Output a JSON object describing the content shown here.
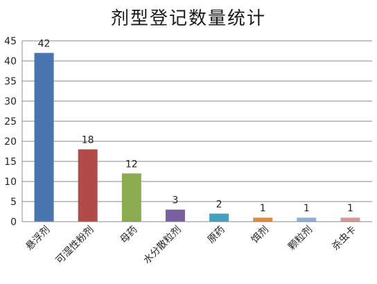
{
  "chart_data": {
    "type": "bar",
    "title": "剂型登记数量统计",
    "xlabel": "",
    "ylabel": "",
    "categories": [
      "悬浮剂",
      "可湿性粉剂",
      "母药",
      "水分散粒剂",
      "原药",
      "饵剂",
      "颗粒剂",
      "杀虫卡"
    ],
    "values": [
      42,
      18,
      12,
      3,
      2,
      1,
      1,
      1
    ],
    "colors": [
      "#4a74ad",
      "#b14a48",
      "#8cab4e",
      "#7961a0",
      "#46a1bd",
      "#e08c3c",
      "#95aed3",
      "#d69a98"
    ],
    "ylim": [
      0,
      45
    ],
    "yticks": [
      0,
      5,
      10,
      15,
      20,
      25,
      30,
      35,
      40,
      45
    ],
    "grid": true,
    "legend": "none"
  }
}
